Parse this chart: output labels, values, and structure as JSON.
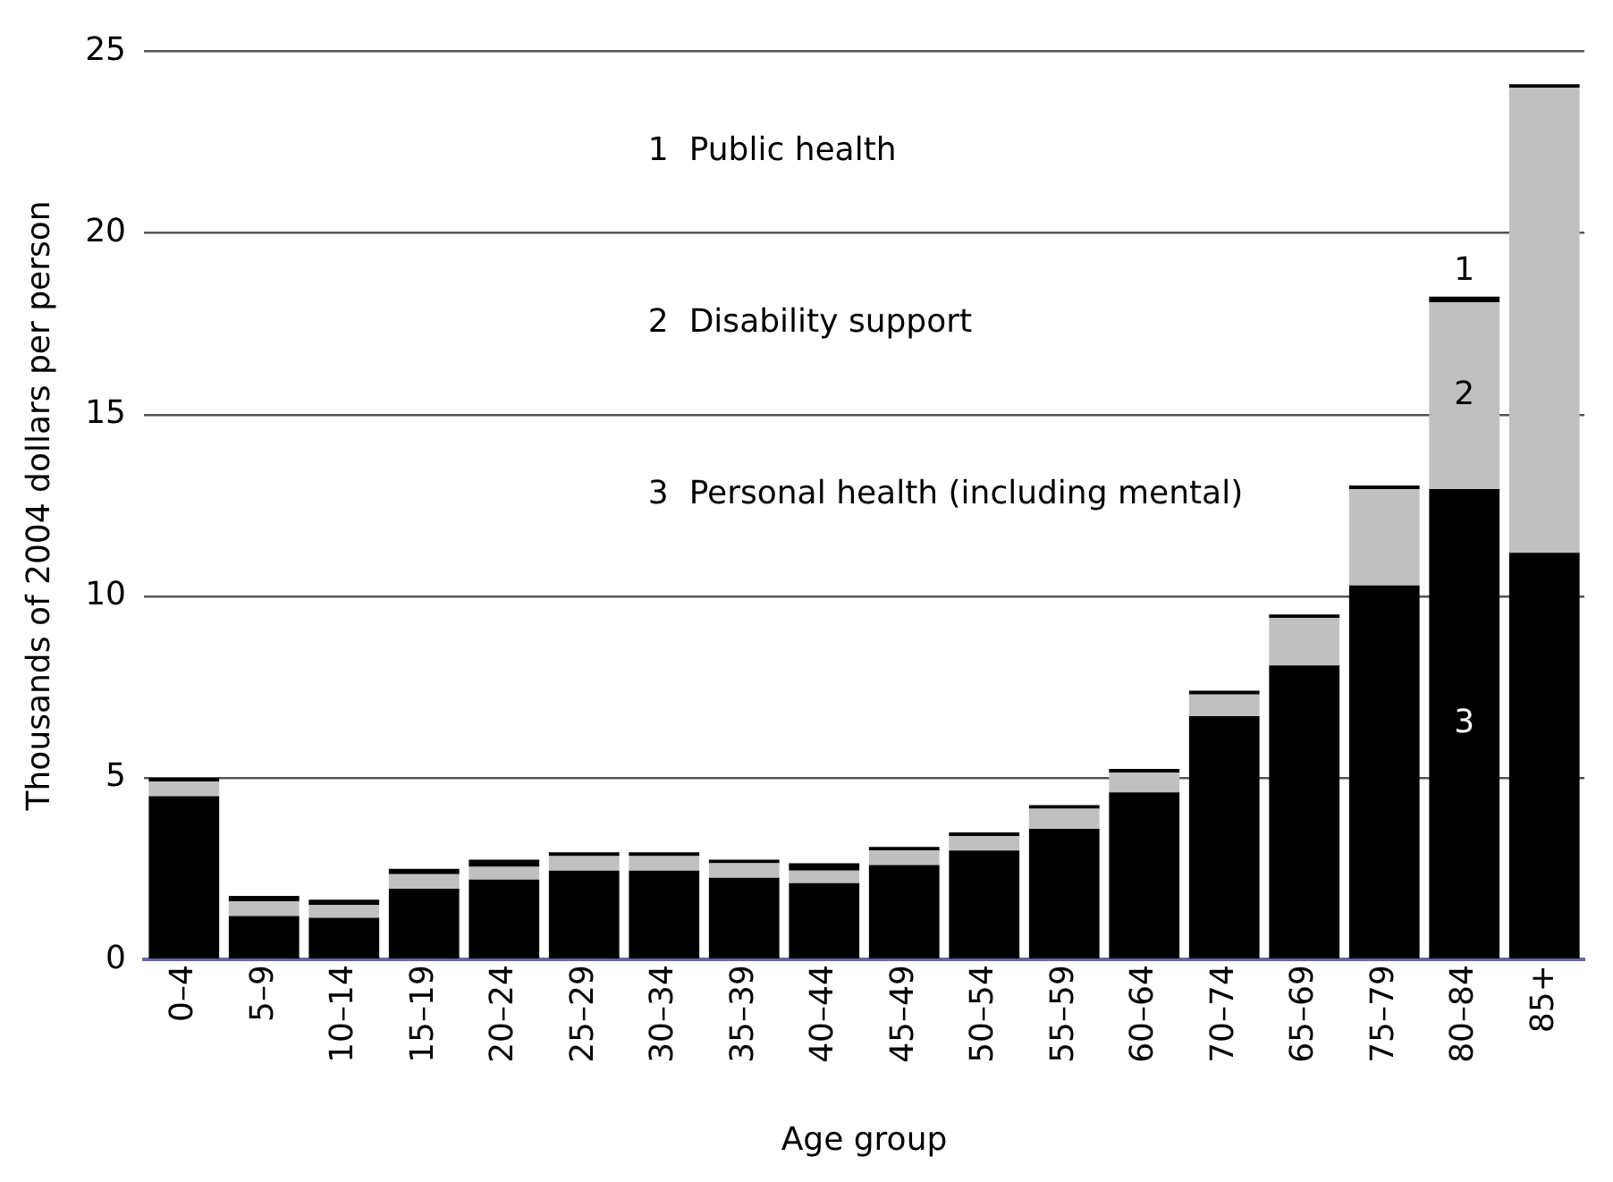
{
  "chart_data": {
    "type": "bar",
    "stacked": true,
    "xlabel": "Age group",
    "ylabel": "Thousands of 2004 dollars per person",
    "categories": [
      "0–4",
      "5–9",
      "10–14",
      "15–19",
      "20–24",
      "25–29",
      "30–34",
      "35–39",
      "40–44",
      "45–49",
      "50–54",
      "55–59",
      "60–64",
      "70–74",
      "65–69",
      "75–79",
      "80–84",
      "85+"
    ],
    "series": [
      {
        "color": "#000000",
        "values": [
          4.5,
          1.2,
          1.15,
          1.95,
          2.2,
          2.45,
          2.45,
          2.25,
          2.1,
          2.6,
          3.0,
          3.6,
          4.6,
          6.7,
          8.1,
          10.3,
          12.95,
          11.2
        ]
      },
      {
        "color": "#c0c0c0",
        "values": [
          0.4,
          0.4,
          0.35,
          0.4,
          0.35,
          0.4,
          0.4,
          0.4,
          0.35,
          0.4,
          0.4,
          0.55,
          0.55,
          0.6,
          1.3,
          2.65,
          5.15,
          12.8
        ]
      },
      {
        "color": "#000000",
        "values": [
          0.1,
          0.15,
          0.15,
          0.15,
          0.2,
          0.1,
          0.1,
          0.1,
          0.2,
          0.1,
          0.1,
          0.1,
          0.1,
          0.1,
          0.1,
          0.1,
          0.15,
          0.1
        ]
      }
    ],
    "ylim": [
      0,
      25
    ],
    "yticks": [
      0,
      5,
      10,
      15,
      20,
      25
    ],
    "grid": "y",
    "legend": false,
    "annotations": [
      "1  Public health",
      "2  Disability support",
      "3  Personal health (including mental)",
      "1",
      "2",
      "3"
    ]
  }
}
